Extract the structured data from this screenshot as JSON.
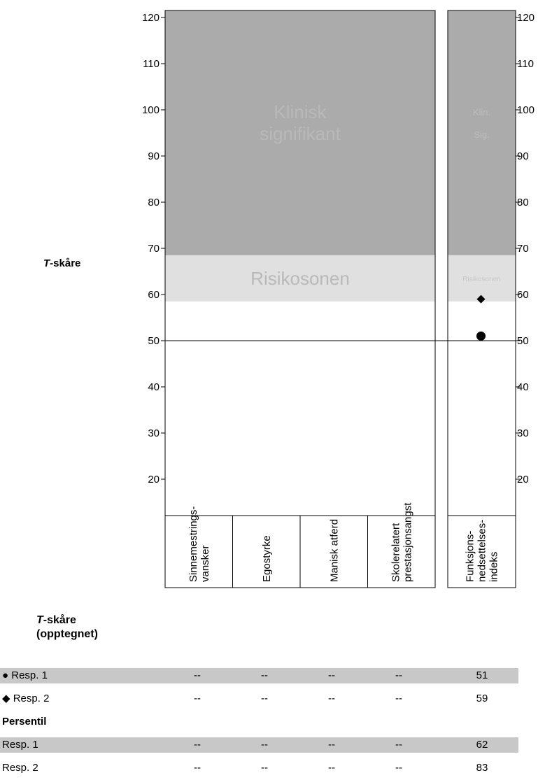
{
  "chart_data": {
    "type": "scatter",
    "ylabel_main": "T-skåre",
    "ylim": [
      12,
      122
    ],
    "yticks": [
      20,
      30,
      40,
      50,
      60,
      70,
      80,
      90,
      100,
      110,
      120
    ],
    "zones": {
      "clinical": {
        "label_line1": "Klinisk",
        "label_line2": "signifikant",
        "from": 68.5,
        "to": 122,
        "color": "#ababab"
      },
      "risk": {
        "label": "Risikosonen",
        "from": 58.5,
        "to": 68.5,
        "color": "#e0e0e0"
      },
      "clinical_short_line1": "Klin.",
      "clinical_short_line2": "Sig.",
      "risk_short": "Risikosonen"
    },
    "reference_line": 50,
    "scales": [
      {
        "line1": "Sinnemestrings-",
        "line2": "vansker"
      },
      {
        "line1": "Egostyrke",
        "line2": ""
      },
      {
        "line1": "Manisk atferd",
        "line2": ""
      },
      {
        "line1": "Skolerelatert",
        "line2": "prestasjonsangst"
      }
    ],
    "index_scale": {
      "line1": "Funksjons-",
      "line2": "nedsettelses-",
      "line3": "indeks"
    },
    "series": [
      {
        "name": "Resp. 1",
        "marker": "circle",
        "values": [
          null,
          null,
          null,
          null,
          51
        ]
      },
      {
        "name": "Resp. 2",
        "marker": "diamond",
        "values": [
          null,
          null,
          null,
          null,
          59
        ]
      }
    ]
  },
  "table": {
    "header_line1": "T-skåre",
    "header_line1_rest": "-skåre",
    "header_italic": "T",
    "header_line2": "(opptegnet)",
    "tscore_rows": [
      {
        "symbol": "●",
        "label": "Resp. 1",
        "values": [
          "--",
          "--",
          "--",
          "--",
          "51"
        ]
      },
      {
        "symbol": "◆",
        "label": "Resp. 2",
        "values": [
          "--",
          "--",
          "--",
          "--",
          "59"
        ]
      }
    ],
    "percentile_title": "Persentil",
    "percentile_rows": [
      {
        "label": "Resp. 1",
        "values": [
          "--",
          "--",
          "--",
          "--",
          "62"
        ]
      },
      {
        "label": "Resp. 2",
        "values": [
          "--",
          "--",
          "--",
          "--",
          "83"
        ]
      }
    ]
  }
}
